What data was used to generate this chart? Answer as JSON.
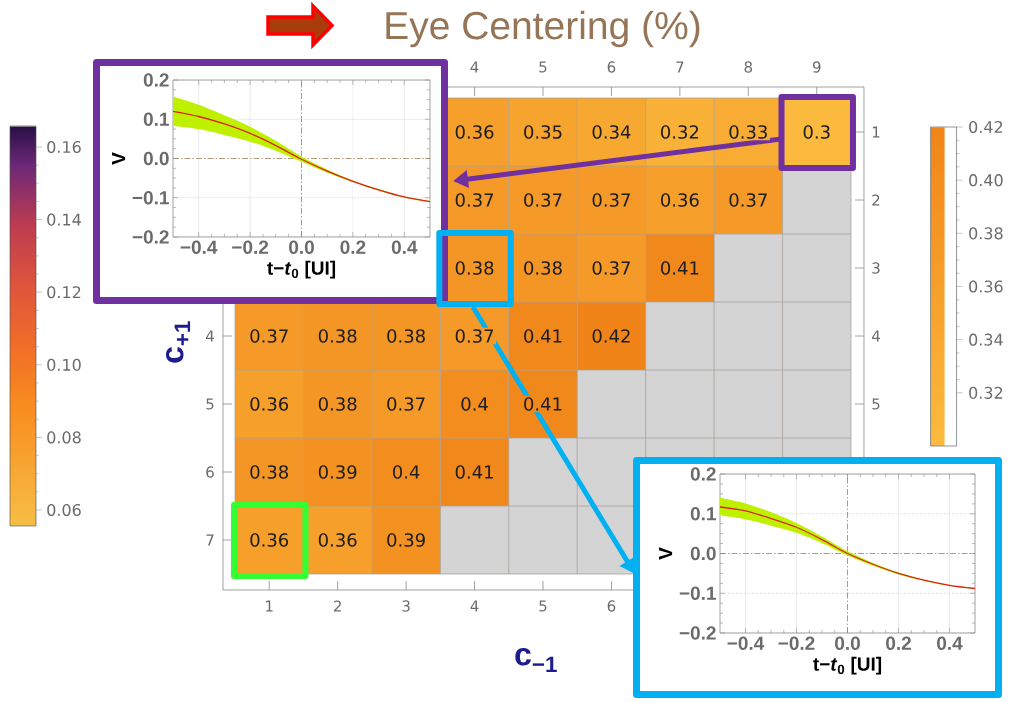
{
  "chart_data": [
    {
      "type": "heatmap",
      "title": "Eye Centering (%)",
      "xlabel": "c$_{−1}$",
      "ylabel": "c$_{+1}$",
      "categories": [
        "1",
        "2",
        "3",
        "4",
        "5",
        "6",
        "7",
        "8",
        "9"
      ],
      "y_categories": [
        "1",
        "2",
        "3",
        "4",
        "5",
        "6",
        "7"
      ],
      "y2_categories": [
        "1",
        "2",
        "3",
        "4",
        "5",
        null,
        null
      ],
      "cells": [
        [
          null,
          null,
          null,
          0.36,
          0.35,
          0.34,
          0.32,
          0.33,
          0.3
        ],
        [
          null,
          null,
          null,
          0.37,
          0.37,
          0.37,
          0.36,
          0.37,
          null
        ],
        [
          null,
          null,
          null,
          0.38,
          0.38,
          0.37,
          0.41,
          null,
          null
        ],
        [
          0.37,
          0.38,
          0.38,
          0.37,
          0.41,
          0.42,
          null,
          null,
          null
        ],
        [
          0.36,
          0.38,
          0.37,
          0.4,
          0.41,
          null,
          null,
          null,
          null
        ],
        [
          0.38,
          0.39,
          0.4,
          0.41,
          null,
          null,
          null,
          null,
          null
        ],
        [
          0.36,
          0.36,
          0.39,
          null,
          null,
          null,
          null,
          null,
          null
        ]
      ],
      "data_labels": true,
      "clim": [
        0.3,
        0.42
      ],
      "cticks": [
        0.32,
        0.34,
        0.36,
        0.38,
        {
          "value": 0.4,
          "label": "0.40"
        },
        0.42
      ],
      "annotations": [
        "0.16",
        "0.14",
        "0.12",
        "0.10",
        "0.08",
        "0.06"
      ]
    },
    {
      "type": "line",
      "xlabel": "t−*t*$_{0}$ [UI]",
      "ylabel": "V",
      "x": [
        -0.5,
        -0.4,
        -0.3,
        -0.2,
        -0.1,
        0,
        0.1,
        0.2,
        0.3,
        0.4,
        0.5
      ],
      "series": [
        {
          "color": "#d9261c",
          "values": [
            0.12,
            0.107,
            0.088,
            0.064,
            0.033,
            -0.002,
            -0.032,
            -0.058,
            -0.08,
            -0.098,
            -0.11
          ],
          "upper": [
            0.158,
            0.137,
            0.11,
            0.081,
            0.045,
            0.005,
            -0.028,
            -0.056,
            -0.078,
            -0.097,
            -0.109
          ],
          "lower": [
            0.083,
            0.075,
            0.06,
            0.043,
            0.02,
            -0.008,
            -0.036,
            -0.06,
            -0.082,
            -0.1,
            -0.112
          ]
        }
      ],
      "xlim": [
        -0.5,
        0.5
      ],
      "ylim": [
        -0.2,
        0.2
      ],
      "xticks": [
        {
          "value": -0.4,
          "label": "−0.4"
        },
        {
          "value": -0.2,
          "label": "−0.2"
        },
        {
          "value": 0,
          "label": "0.0"
        },
        {
          "value": 0.2,
          "label": "0.2"
        },
        {
          "value": 0.4,
          "label": "0.4"
        }
      ],
      "yticks": [
        {
          "value": -0.2,
          "label": "−0.2"
        },
        {
          "value": -0.1,
          "label": "−0.1"
        },
        {
          "value": 0,
          "label": "0.0"
        },
        {
          "value": 0.1,
          "label": "0.1"
        },
        {
          "value": 0.2,
          "label": "0.2"
        }
      ],
      "grid": true
    },
    {
      "type": "line",
      "xlabel": "t−*t*$_{0}$ [UI]",
      "ylabel": "V",
      "x": [
        -0.5,
        -0.4,
        -0.3,
        -0.2,
        -0.1,
        0,
        0.1,
        0.2,
        0.3,
        0.4,
        0.5
      ],
      "series": [
        {
          "color": "#d9261c",
          "values": [
            0.117,
            0.107,
            0.088,
            0.066,
            0.035,
            0.0,
            -0.027,
            -0.05,
            -0.067,
            -0.08,
            -0.088
          ],
          "upper": [
            0.14,
            0.126,
            0.104,
            0.077,
            0.043,
            0.006,
            -0.024,
            -0.048,
            -0.066,
            -0.079,
            -0.087
          ],
          "lower": [
            0.096,
            0.086,
            0.07,
            0.052,
            0.026,
            -0.005,
            -0.031,
            -0.053,
            -0.069,
            -0.081,
            -0.089
          ]
        }
      ],
      "xlim": [
        -0.5,
        0.5
      ],
      "ylim": [
        -0.2,
        0.2
      ],
      "xticks": [
        {
          "value": -0.4,
          "label": "−0.4"
        },
        {
          "value": -0.2,
          "label": "−0.2"
        },
        {
          "value": 0,
          "label": "0.0"
        },
        {
          "value": 0.2,
          "label": "0.2"
        },
        {
          "value": 0.4,
          "label": "0.4"
        }
      ],
      "yticks": [
        {
          "value": -0.2,
          "label": "−0.2"
        },
        {
          "value": -0.1,
          "label": "−0.1"
        },
        {
          "value": 0,
          "label": "0.0"
        },
        {
          "value": 0.1,
          "label": "0.1"
        },
        {
          "value": 0.2,
          "label": "0.2"
        }
      ],
      "grid": true
    }
  ]
}
